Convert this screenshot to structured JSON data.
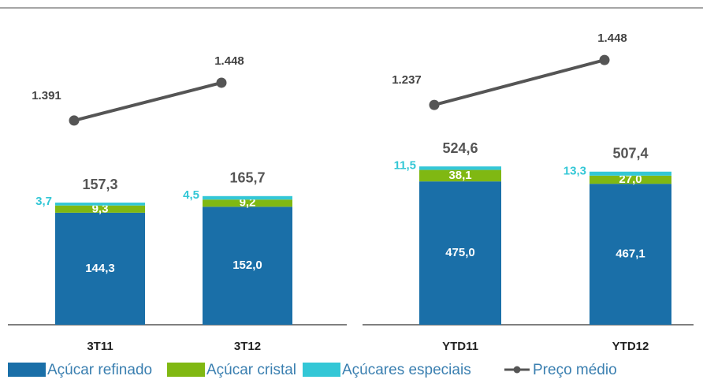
{
  "legend": [
    {
      "name": "Açúcar refinado",
      "color": "#1a6fa8",
      "marker": "square"
    },
    {
      "name": "Açúcar cristal",
      "color": "#80b812",
      "marker": "square"
    },
    {
      "name": "Açúcares especiais",
      "color": "#33c7d6",
      "marker": "square"
    },
    {
      "name": "Preço médio",
      "color": "#555555",
      "marker": "line"
    }
  ],
  "chart_data": [
    {
      "type": "bar",
      "stacked": true,
      "categories": [
        "3T11",
        "3T12"
      ],
      "series": [
        {
          "values": [
            144.3,
            152.0
          ],
          "value_labels": [
            "144,3",
            "152,0"
          ]
        },
        {
          "values": [
            9.3,
            9.2
          ],
          "value_labels": [
            "9,3",
            "9,2"
          ]
        },
        {
          "values": [
            3.7,
            4.5
          ],
          "value_labels": [
            "3,7",
            "4,5"
          ]
        }
      ],
      "totals": [
        157.3,
        165.7
      ],
      "total_labels": [
        "157,3",
        "165,7"
      ],
      "line": {
        "axis": "y2",
        "values": [
          1391,
          1448
        ],
        "value_labels": [
          "1.391",
          "1.448"
        ]
      },
      "ylim": [
        0,
        398
      ],
      "y2lim": [
        1083,
        1549
      ]
    },
    {
      "type": "bar",
      "stacked": true,
      "categories": [
        "YTD11",
        "YTD12"
      ],
      "series": [
        {
          "values": [
            475.0,
            467.1
          ],
          "value_labels": [
            "475,0",
            "467,1"
          ]
        },
        {
          "values": [
            38.1,
            27.0
          ],
          "value_labels": [
            "38,1",
            "27,0"
          ]
        },
        {
          "values": [
            11.5,
            13.3
          ],
          "value_labels": [
            "11,5",
            "13,3"
          ]
        }
      ],
      "totals": [
        524.6,
        507.4
      ],
      "total_labels": [
        "524,6",
        "507,4"
      ],
      "line": {
        "axis": "y2",
        "values": [
          1237,
          1448
        ],
        "value_labels": [
          "1.237",
          "1.448"
        ]
      },
      "ylim": [
        0,
        1024
      ],
      "y2lim": [
        204,
        1656
      ]
    }
  ]
}
